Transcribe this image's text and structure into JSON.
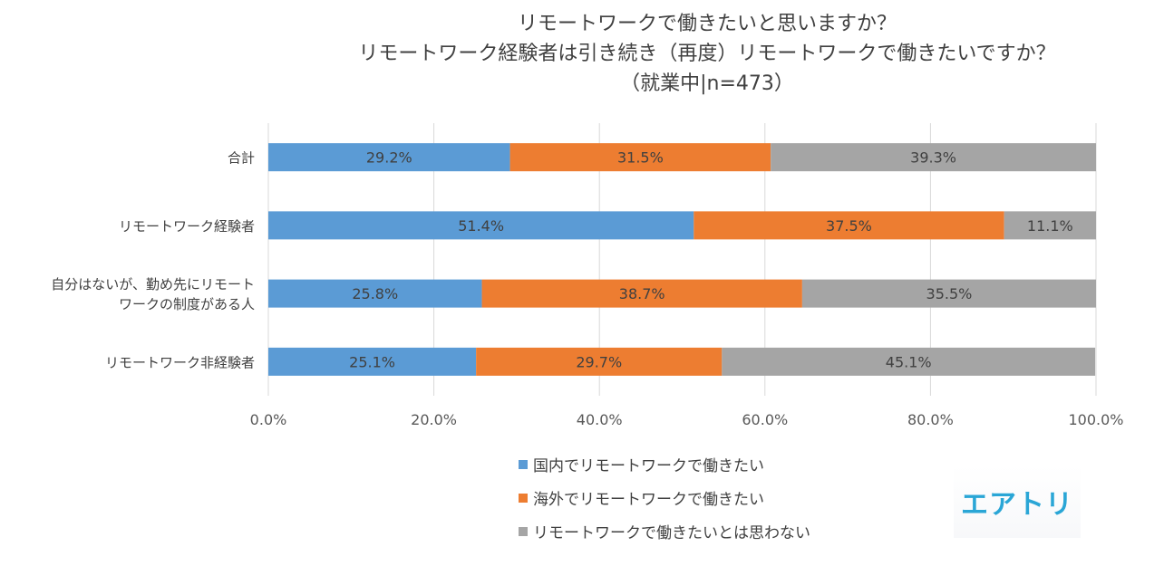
{
  "chart_data": {
    "type": "bar",
    "orientation": "horizontal",
    "stacked": true,
    "title": [
      "リモートワークで働きたいと思いますか？",
      "リモートワーク経験者は引き続き（再度）リモートワークで働きたいですか？",
      "（就業中|n=473）"
    ],
    "categories": [
      "合計",
      "リモートワーク経験者",
      "自分はないが、勤め先にリモートワークの制度がある人",
      "リモートワーク非経験者"
    ],
    "category_lines": [
      [
        "合計"
      ],
      [
        "リモートワーク経験者"
      ],
      [
        "自分はないが、勤め先にリモート",
        "ワークの制度がある人"
      ],
      [
        "リモートワーク非経験者"
      ]
    ],
    "series": [
      {
        "name": "国内でリモートワークで働きたい",
        "color": "#5b9bd5",
        "values": [
          29.2,
          51.4,
          25.8,
          25.1
        ],
        "labels": [
          "29.2%",
          "51.4%",
          "25.8%",
          "25.1%"
        ]
      },
      {
        "name": "海外でリモートワークで働きたい",
        "color": "#ed7d31",
        "values": [
          31.5,
          37.5,
          38.7,
          29.7
        ],
        "labels": [
          "31.5%",
          "37.5%",
          "38.7%",
          "29.7%"
        ]
      },
      {
        "name": "リモートワークで働きたいとは思わない",
        "color": "#a5a5a5",
        "values": [
          39.3,
          11.1,
          35.5,
          45.1
        ],
        "labels": [
          "39.3%",
          "11.1%",
          "35.5%",
          "45.1%"
        ]
      }
    ],
    "xlim": [
      0,
      100
    ],
    "xticks": [
      "0.0%",
      "20.0%",
      "40.0%",
      "60.0%",
      "80.0%",
      "100.0%"
    ],
    "grid": true,
    "legend_position": "bottom"
  },
  "logo": {
    "text": "エアトリ",
    "color": "#2aa6d6"
  }
}
